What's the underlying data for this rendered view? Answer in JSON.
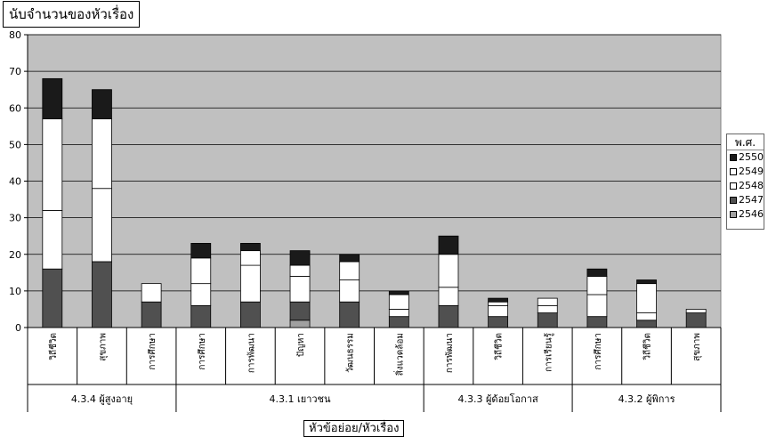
{
  "chart_data": {
    "type": "bar",
    "stacked": true,
    "title": "",
    "ylabel": "นับจำนวนของหัวเรื่อง",
    "xlabel": "หัวข้อย่อย/หัวเรื่อง",
    "ylim": [
      0,
      80
    ],
    "yticks": [
      0,
      10,
      20,
      30,
      40,
      50,
      60,
      70,
      80
    ],
    "grid": true,
    "legend": {
      "title": "พ.ศ.",
      "placement": "right"
    },
    "categories": [
      "วิถีชีวิต",
      "สุขภาพ",
      "การศึกษา",
      "การศึกษา",
      "การพัฒนา",
      "ปัญหา",
      "วัฒนธรรม",
      "สิ่งแวดล้อม",
      "การพัฒนา",
      "วิถีชีวิต",
      "การเรียนรู้",
      "การศึกษา",
      "วิถีชีวิต",
      "สุขภาพ"
    ],
    "groups": [
      {
        "label": "4.3.4 ผู้สูงอายุ",
        "count": 3
      },
      {
        "label": "4.3.1 เยาวชน",
        "count": 5
      },
      {
        "label": "4.3.3 ผู้ด้อยโอกาส",
        "count": 3
      },
      {
        "label": "4.3.2 ผู้พิการ",
        "count": 3
      }
    ],
    "series": [
      {
        "name": "2546",
        "color": "#a0a0a0",
        "values": [
          0,
          0,
          0,
          0,
          0,
          2,
          0,
          0,
          0,
          0,
          0,
          0,
          0,
          0
        ]
      },
      {
        "name": "2547",
        "color": "#505050",
        "values": [
          16,
          18,
          7,
          6,
          7,
          5,
          7,
          3,
          6,
          3,
          4,
          3,
          2,
          4
        ]
      },
      {
        "name": "2548",
        "color": "#ffffff",
        "values": [
          16,
          20,
          0,
          6,
          10,
          7,
          6,
          2,
          5,
          3,
          2,
          6,
          2,
          0
        ]
      },
      {
        "name": "2549",
        "color": "#ffffff",
        "values": [
          25,
          19,
          5,
          7,
          4,
          3,
          5,
          4,
          9,
          1,
          2,
          5,
          8,
          1
        ]
      },
      {
        "name": "2550",
        "color": "#1a1a1a",
        "values": [
          11,
          8,
          0,
          4,
          2,
          4,
          2,
          1,
          5,
          1,
          0,
          2,
          1,
          0
        ]
      }
    ],
    "value_labels": [
      [
        "",
        "",
        "",
        "",
        ""
      ],
      [
        "",
        "",
        "",
        "",
        ""
      ],
      [
        "",
        "",
        "",
        "",
        ""
      ],
      [
        "",
        "",
        "",
        "",
        ""
      ],
      [
        "",
        "",
        "",
        "",
        ""
      ],
      [
        "",
        "",
        "",
        "",
        ""
      ],
      [
        "",
        "",
        "",
        "",
        ""
      ],
      [
        "",
        "",
        "",
        "",
        ""
      ],
      [
        "",
        "",
        "",
        "",
        ""
      ],
      [
        "",
        "",
        "",
        "",
        ""
      ],
      [
        "",
        "",
        "",
        "",
        ""
      ],
      [
        "",
        "",
        "",
        "",
        ""
      ],
      [
        "",
        "",
        "",
        "",
        ""
      ],
      [
        "",
        "",
        "",
        "",
        ""
      ]
    ]
  }
}
